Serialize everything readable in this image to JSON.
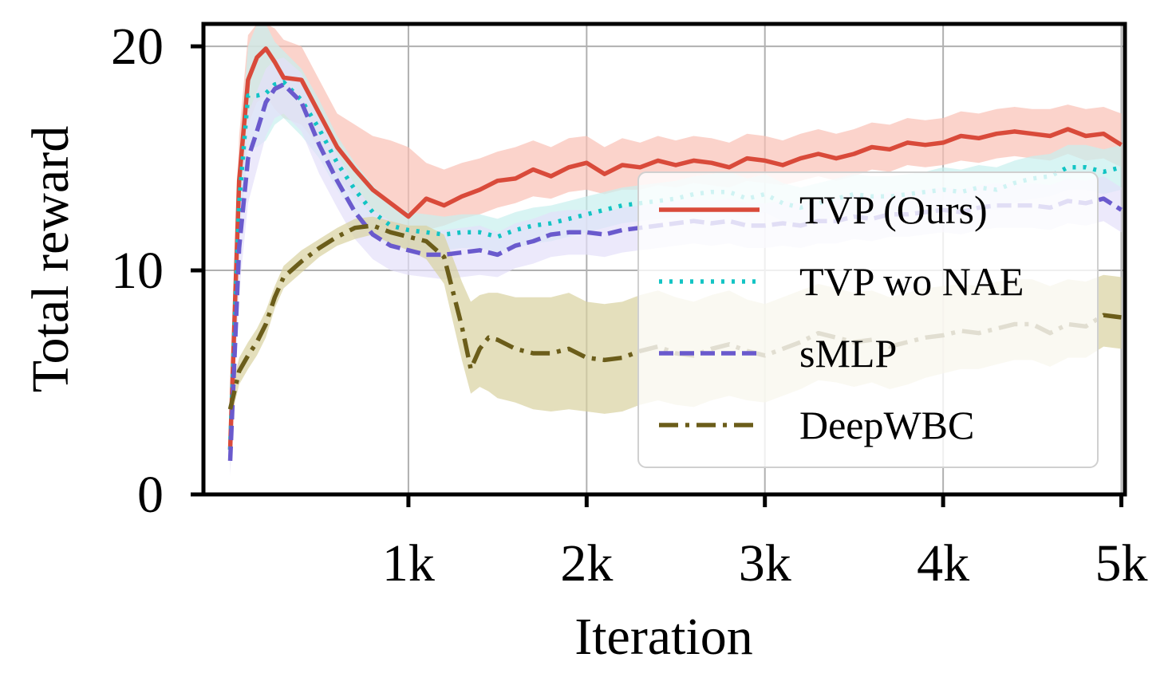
{
  "chart_data": {
    "type": "line",
    "title": "",
    "xlabel": "Iteration",
    "ylabel": "Total reward",
    "xlim": [
      -150,
      5020
    ],
    "ylim": [
      0,
      21
    ],
    "x_ticks": [
      1000,
      2000,
      3000,
      4000,
      5000
    ],
    "x_tick_labels": [
      "1k",
      "2k",
      "3k",
      "4k",
      "5k"
    ],
    "y_ticks": [
      0,
      10,
      20
    ],
    "y_tick_labels": [
      "0",
      "10",
      "20"
    ],
    "grid": true,
    "legend_position": "center-right",
    "series": [
      {
        "name": "TVP (Ours)",
        "color": "#d94a3a",
        "band_color": "#f9c0b5",
        "style": "solid",
        "x": [
          0,
          50,
          100,
          150,
          200,
          250,
          300,
          400,
          500,
          600,
          700,
          800,
          900,
          1000,
          1100,
          1200,
          1300,
          1400,
          1500,
          1600,
          1700,
          1800,
          1900,
          2000,
          2100,
          2200,
          2300,
          2400,
          2500,
          2600,
          2700,
          2800,
          2900,
          3000,
          3100,
          3200,
          3300,
          3400,
          3500,
          3600,
          3700,
          3800,
          3900,
          4000,
          4100,
          4200,
          4300,
          4400,
          4500,
          4600,
          4700,
          4800,
          4900,
          5000
        ],
        "mean": [
          2.0,
          14.0,
          18.5,
          19.5,
          19.9,
          19.3,
          18.6,
          18.5,
          17.0,
          15.5,
          14.5,
          13.6,
          13.0,
          12.4,
          13.2,
          12.9,
          13.3,
          13.6,
          14.0,
          14.1,
          14.5,
          14.2,
          14.6,
          14.8,
          14.3,
          14.7,
          14.6,
          14.9,
          14.7,
          14.9,
          14.8,
          14.6,
          15.0,
          14.9,
          14.7,
          15.0,
          15.2,
          15.0,
          15.2,
          15.5,
          15.4,
          15.7,
          15.6,
          15.7,
          16.0,
          15.9,
          16.1,
          16.2,
          16.1,
          16.0,
          16.3,
          16.0,
          16.1,
          15.6
        ],
        "low": [
          1.0,
          12.0,
          16.5,
          17.5,
          17.8,
          17.2,
          16.8,
          16.5,
          15.5,
          14.2,
          13.2,
          12.5,
          12.0,
          11.5,
          11.8,
          12.0,
          12.3,
          12.5,
          12.8,
          13.0,
          13.3,
          13.2,
          13.5,
          13.6,
          13.4,
          13.6,
          13.6,
          13.8,
          13.7,
          13.9,
          13.8,
          13.7,
          14.0,
          13.9,
          13.8,
          14.0,
          14.2,
          14.0,
          14.2,
          14.5,
          14.4,
          14.7,
          14.6,
          14.7,
          14.9,
          14.8,
          15.0,
          15.1,
          15.0,
          14.9,
          15.2,
          14.9,
          15.0,
          14.6
        ],
        "high": [
          3.0,
          16.0,
          20.5,
          21.0,
          21.0,
          20.8,
          20.3,
          20.0,
          18.5,
          17.0,
          16.5,
          16.0,
          15.8,
          15.5,
          14.8,
          14.5,
          14.8,
          15.0,
          15.3,
          15.5,
          15.8,
          15.5,
          15.9,
          16.0,
          15.5,
          15.9,
          15.7,
          16.0,
          15.8,
          16.0,
          15.9,
          15.7,
          16.1,
          16.0,
          15.8,
          16.1,
          16.3,
          16.1,
          16.3,
          16.6,
          16.5,
          16.8,
          16.7,
          16.8,
          17.1,
          17.0,
          17.2,
          17.3,
          17.2,
          17.2,
          17.4,
          17.2,
          17.3,
          17.0
        ]
      },
      {
        "name": "TVP wo NAE",
        "color": "#12c4c4",
        "band_color": "#c8f0ee",
        "style": "dotted",
        "x": [
          0,
          50,
          100,
          150,
          200,
          250,
          300,
          400,
          500,
          600,
          700,
          800,
          900,
          1000,
          1100,
          1200,
          1300,
          1400,
          1500,
          1600,
          1700,
          1800,
          1900,
          2000,
          2100,
          2200,
          2300,
          2400,
          2500,
          2600,
          2700,
          2800,
          2900,
          3000,
          3100,
          3200,
          3300,
          3400,
          3500,
          3600,
          3700,
          3800,
          3900,
          4000,
          4100,
          4200,
          4300,
          4400,
          4500,
          4600,
          4700,
          4800,
          4900,
          5000
        ],
        "mean": [
          2.0,
          13.0,
          17.8,
          17.8,
          17.9,
          18.3,
          18.4,
          17.6,
          16.3,
          14.8,
          13.6,
          12.6,
          12.0,
          11.8,
          11.7,
          11.6,
          11.7,
          11.7,
          11.5,
          11.8,
          12.0,
          12.1,
          12.3,
          12.5,
          12.7,
          12.9,
          13.0,
          13.1,
          13.2,
          13.4,
          13.5,
          13.5,
          13.2,
          13.4,
          13.0,
          12.8,
          13.0,
          13.2,
          13.4,
          13.3,
          13.3,
          13.4,
          13.5,
          13.6,
          13.5,
          13.7,
          13.6,
          13.9,
          14.1,
          14.2,
          14.6,
          14.6,
          14.4,
          14.6
        ],
        "low": [
          1.0,
          11.0,
          15.5,
          15.5,
          15.8,
          16.5,
          16.8,
          16.0,
          15.0,
          13.6,
          12.5,
          11.6,
          11.1,
          11.0,
          10.9,
          10.9,
          11.0,
          11.0,
          10.8,
          11.0,
          11.2,
          11.3,
          11.5,
          11.7,
          11.9,
          12.1,
          12.2,
          12.3,
          12.4,
          12.5,
          12.6,
          12.6,
          12.4,
          12.6,
          12.2,
          12.0,
          12.2,
          12.4,
          12.5,
          12.5,
          12.5,
          12.6,
          12.6,
          12.7,
          12.6,
          12.8,
          12.7,
          13.0,
          13.2,
          13.3,
          13.6,
          13.6,
          13.4,
          13.6
        ],
        "high": [
          3.0,
          15.0,
          20.0,
          21.0,
          21.0,
          20.2,
          19.8,
          19.0,
          17.6,
          16.0,
          14.8,
          13.8,
          13.0,
          12.6,
          12.5,
          12.4,
          12.5,
          12.5,
          12.3,
          12.6,
          12.8,
          12.9,
          13.1,
          13.3,
          13.5,
          13.7,
          13.8,
          13.9,
          14.0,
          14.2,
          14.3,
          14.4,
          14.1,
          14.3,
          13.9,
          13.7,
          13.9,
          14.1,
          14.3,
          14.2,
          14.2,
          14.3,
          14.4,
          14.6,
          14.5,
          14.7,
          14.6,
          14.9,
          15.1,
          15.2,
          15.6,
          15.6,
          15.4,
          15.6
        ]
      },
      {
        "name": "sMLP",
        "color": "#6a5acd",
        "band_color": "#e4e0fa",
        "style": "dashed",
        "x": [
          0,
          50,
          100,
          150,
          200,
          250,
          300,
          400,
          500,
          600,
          700,
          800,
          900,
          1000,
          1100,
          1200,
          1300,
          1400,
          1500,
          1600,
          1700,
          1800,
          1900,
          2000,
          2100,
          2200,
          2300,
          2400,
          2500,
          2600,
          2700,
          2800,
          2900,
          3000,
          3100,
          3200,
          3300,
          3400,
          3500,
          3600,
          3700,
          3800,
          3900,
          4000,
          4100,
          4200,
          4300,
          4400,
          4500,
          4600,
          4700,
          4800,
          4900,
          5000
        ],
        "mean": [
          1.5,
          11.0,
          15.0,
          16.2,
          17.5,
          18.1,
          18.3,
          17.5,
          15.6,
          14.0,
          12.6,
          11.6,
          11.1,
          10.9,
          10.7,
          10.7,
          10.8,
          10.9,
          10.7,
          11.1,
          11.3,
          11.6,
          11.7,
          11.7,
          11.6,
          11.8,
          11.9,
          12.0,
          12.1,
          12.2,
          12.1,
          12.2,
          12.0,
          12.0,
          12.1,
          12.0,
          12.2,
          12.2,
          12.4,
          12.3,
          12.5,
          12.5,
          12.6,
          12.7,
          12.6,
          12.8,
          12.9,
          12.9,
          12.9,
          12.8,
          13.1,
          13.0,
          13.2,
          12.7
        ],
        "low": [
          0.8,
          9.0,
          13.0,
          14.5,
          16.0,
          16.8,
          17.0,
          16.2,
          14.3,
          12.8,
          11.4,
          10.5,
          10.0,
          9.8,
          9.7,
          9.6,
          9.7,
          9.8,
          9.7,
          10.1,
          10.3,
          10.6,
          10.7,
          10.7,
          10.6,
          10.8,
          10.9,
          11.0,
          11.1,
          11.2,
          11.1,
          11.2,
          11.0,
          11.0,
          11.1,
          11.0,
          11.2,
          11.2,
          11.4,
          11.3,
          11.5,
          11.5,
          11.6,
          11.7,
          11.6,
          11.8,
          11.9,
          11.9,
          11.9,
          11.8,
          12.1,
          12.0,
          12.2,
          11.7
        ],
        "high": [
          2.2,
          13.0,
          17.0,
          18.0,
          19.0,
          19.4,
          19.5,
          18.8,
          16.9,
          15.2,
          13.8,
          12.7,
          12.2,
          12.0,
          11.7,
          11.8,
          11.9,
          12.0,
          11.7,
          12.1,
          12.3,
          12.6,
          12.7,
          12.7,
          12.6,
          12.8,
          12.9,
          13.0,
          13.1,
          13.2,
          13.1,
          13.2,
          13.0,
          13.0,
          13.1,
          13.0,
          13.2,
          13.2,
          13.4,
          13.3,
          13.5,
          13.5,
          13.6,
          13.7,
          13.6,
          13.8,
          13.9,
          13.9,
          13.9,
          13.8,
          14.1,
          14.0,
          14.2,
          13.7
        ]
      },
      {
        "name": "DeepWBC",
        "color": "#6b5d1a",
        "band_color": "#d8d2a0",
        "style": "dashdot",
        "x": [
          0,
          50,
          100,
          150,
          200,
          250,
          300,
          400,
          500,
          600,
          700,
          800,
          900,
          1000,
          1100,
          1200,
          1300,
          1350,
          1400,
          1450,
          1500,
          1600,
          1700,
          1800,
          1900,
          2000,
          2100,
          2200,
          2300,
          2400,
          2500,
          2600,
          2700,
          2800,
          2900,
          3000,
          3100,
          3200,
          3300,
          3400,
          3500,
          3600,
          3700,
          3800,
          3900,
          4000,
          4100,
          4200,
          4300,
          4400,
          4500,
          4600,
          4700,
          4800,
          4900,
          5000
        ],
        "mean": [
          3.8,
          5.5,
          6.2,
          6.8,
          7.6,
          8.8,
          9.7,
          10.4,
          11.0,
          11.5,
          11.9,
          12.0,
          11.7,
          11.5,
          11.3,
          10.6,
          7.5,
          5.6,
          6.5,
          7.0,
          6.9,
          6.5,
          6.3,
          6.3,
          6.5,
          6.1,
          6.0,
          6.1,
          6.4,
          6.6,
          6.3,
          6.2,
          6.5,
          6.7,
          6.4,
          6.2,
          6.5,
          6.8,
          7.2,
          7.0,
          6.8,
          6.9,
          6.6,
          6.8,
          7.0,
          7.1,
          7.3,
          7.2,
          7.4,
          7.6,
          7.6,
          7.2,
          7.6,
          7.5,
          8.0,
          7.9
        ],
        "low": [
          3.2,
          4.9,
          5.6,
          6.2,
          7.0,
          8.3,
          9.2,
          9.9,
          10.6,
          11.1,
          11.4,
          11.6,
          11.2,
          10.9,
          10.5,
          9.4,
          6.0,
          4.5,
          4.8,
          4.6,
          4.3,
          4.1,
          3.8,
          3.7,
          3.8,
          3.7,
          3.6,
          3.7,
          4.0,
          4.2,
          4.0,
          3.9,
          4.2,
          4.4,
          4.2,
          4.1,
          4.4,
          4.7,
          5.1,
          5.0,
          4.8,
          5.0,
          4.7,
          4.9,
          5.2,
          5.4,
          5.6,
          5.6,
          5.8,
          6.0,
          6.0,
          5.7,
          6.1,
          6.1,
          6.6,
          6.5
        ],
        "high": [
          4.4,
          6.1,
          6.8,
          7.4,
          8.2,
          9.3,
          10.2,
          10.9,
          11.4,
          11.9,
          12.3,
          12.4,
          12.2,
          12.0,
          12.0,
          11.6,
          9.5,
          8.6,
          8.9,
          9.0,
          9.0,
          8.8,
          8.8,
          8.8,
          9.0,
          8.6,
          8.5,
          8.6,
          8.9,
          9.1,
          8.8,
          8.6,
          8.9,
          9.1,
          8.7,
          8.5,
          8.8,
          9.1,
          9.4,
          9.2,
          9.0,
          9.1,
          8.8,
          9.0,
          9.2,
          9.3,
          9.4,
          9.3,
          9.5,
          9.6,
          9.6,
          9.3,
          9.6,
          9.5,
          9.8,
          9.7
        ]
      }
    ]
  }
}
